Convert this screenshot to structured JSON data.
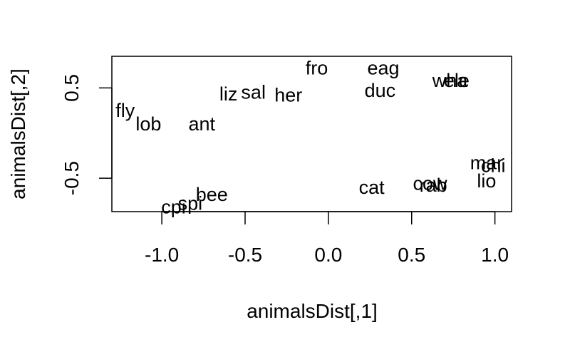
{
  "chart_data": {
    "type": "scatter",
    "xlabel": "animalsDist[,1]",
    "ylabel": "animalsDist[,2]",
    "xlim": [
      -1.3,
      1.1
    ],
    "ylim": [
      -0.87,
      0.85
    ],
    "x_ticks": [
      {
        "value": -1.0,
        "label": "-1.0"
      },
      {
        "value": -0.5,
        "label": "-0.5"
      },
      {
        "value": 0.0,
        "label": "0.0"
      },
      {
        "value": 0.5,
        "label": "0.5"
      },
      {
        "value": 1.0,
        "label": "1.0"
      }
    ],
    "y_ticks": [
      {
        "value": -0.5,
        "label": "-0.5"
      },
      {
        "value": 0.5,
        "label": "0.5"
      }
    ],
    "grid": false,
    "points": [
      {
        "label": "fro",
        "x": -0.07,
        "y": 0.72
      },
      {
        "label": "eag",
        "x": 0.33,
        "y": 0.72
      },
      {
        "label": "wha",
        "x": 0.73,
        "y": 0.58
      },
      {
        "label": "ele",
        "x": 0.77,
        "y": 0.58
      },
      {
        "label": "duc",
        "x": 0.31,
        "y": 0.47
      },
      {
        "label": "liz",
        "x": -0.6,
        "y": 0.43
      },
      {
        "label": "sal",
        "x": -0.45,
        "y": 0.45
      },
      {
        "label": "her",
        "x": -0.24,
        "y": 0.42
      },
      {
        "label": "fly",
        "x": -1.22,
        "y": 0.25
      },
      {
        "label": "lob",
        "x": -1.08,
        "y": 0.1
      },
      {
        "label": "ant",
        "x": -0.76,
        "y": 0.1
      },
      {
        "label": "mar",
        "x": 0.95,
        "y": -0.33
      },
      {
        "label": "chi",
        "x": 0.99,
        "y": -0.36
      },
      {
        "label": "lio",
        "x": 0.95,
        "y": -0.53
      },
      {
        "label": "cow",
        "x": 0.61,
        "y": -0.56
      },
      {
        "label": "rab",
        "x": 0.63,
        "y": -0.58
      },
      {
        "label": "cat",
        "x": 0.26,
        "y": -0.6
      },
      {
        "label": "bee",
        "x": -0.7,
        "y": -0.68
      },
      {
        "label": "spi",
        "x": -0.83,
        "y": -0.78
      },
      {
        "label": "cpi",
        "x": -0.93,
        "y": -0.82
      }
    ]
  }
}
